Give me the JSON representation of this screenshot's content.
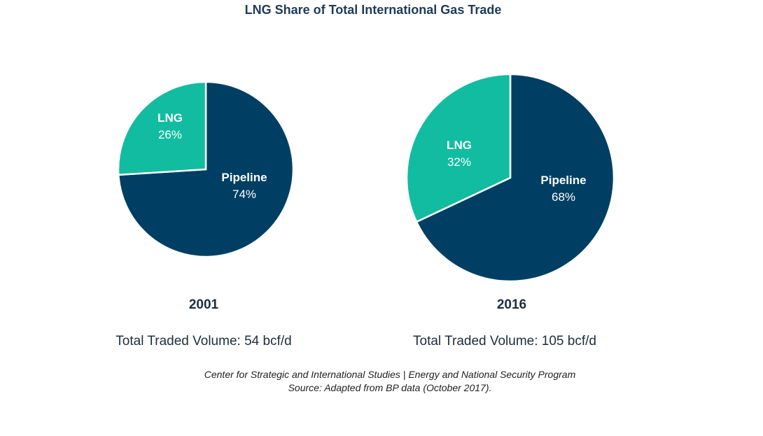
{
  "chart_data": {
    "type": "pie",
    "title": "LNG Share of Total International Gas Trade",
    "colors": {
      "LNG": "#12bca0",
      "Pipeline": "#003f63"
    },
    "pies": [
      {
        "year": "2001",
        "volume_label": "Total Traded Volume: 54 bcf/d",
        "slices": [
          {
            "name": "LNG",
            "value": 26,
            "label": "26%"
          },
          {
            "name": "Pipeline",
            "value": 74,
            "label": "74%"
          }
        ]
      },
      {
        "year": "2016",
        "volume_label": "Total Traded Volume: 105 bcf/d",
        "slices": [
          {
            "name": "LNG",
            "value": 32,
            "label": "32%"
          },
          {
            "name": "Pipeline",
            "value": 68,
            "label": "68%"
          }
        ]
      }
    ]
  },
  "source": {
    "line1": "Center for Strategic and International Studies | Energy and National Security Program",
    "line2": "Source: Adapted from BP data (October 2017)."
  }
}
